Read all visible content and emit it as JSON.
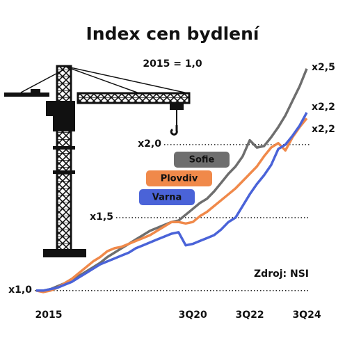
{
  "chart_data": {
    "type": "line",
    "title": "Index cen bydlení",
    "subtitle": "2015 = 1,0",
    "source": "Zdroj: NSI",
    "categories": [
      "2015",
      null,
      null,
      null,
      null,
      null,
      null,
      null,
      null,
      null,
      null,
      null,
      null,
      null,
      null,
      null,
      null,
      null,
      null,
      null,
      null,
      null,
      "3Q20",
      null,
      null,
      null,
      null,
      null,
      null,
      null,
      "3Q22",
      null,
      null,
      null,
      null,
      null,
      null,
      null,
      "3Q24"
    ],
    "series": [
      {
        "name": "Sofie",
        "color": "#6e6e6e",
        "values": [
          1.0,
          1.0,
          1.01,
          1.03,
          1.05,
          1.08,
          1.1,
          1.13,
          1.16,
          1.19,
          1.23,
          1.26,
          1.29,
          1.32,
          1.35,
          1.38,
          1.41,
          1.43,
          1.45,
          1.47,
          1.48,
          1.52,
          1.56,
          1.6,
          1.63,
          1.68,
          1.74,
          1.8,
          1.85,
          1.92,
          2.03,
          1.98,
          1.99,
          2.05,
          2.12,
          2.2,
          2.3,
          2.4,
          2.52
        ],
        "value_labels": [
          null,
          null,
          null,
          null,
          null,
          null,
          null,
          null,
          null,
          null,
          null,
          null,
          null,
          null,
          null,
          null,
          null,
          null,
          null,
          null,
          null,
          null,
          null,
          null,
          null,
          null,
          null,
          null,
          null,
          null,
          null,
          null,
          null,
          null,
          null,
          null,
          null,
          null,
          "x2,5"
        ]
      },
      {
        "name": "Plovdiv",
        "color": "#f0894a",
        "values": [
          1.0,
          0.99,
          1.0,
          1.02,
          1.05,
          1.08,
          1.12,
          1.16,
          1.2,
          1.23,
          1.27,
          1.29,
          1.3,
          1.32,
          1.34,
          1.36,
          1.38,
          1.41,
          1.44,
          1.47,
          1.47,
          1.46,
          1.47,
          1.51,
          1.54,
          1.58,
          1.62,
          1.66,
          1.7,
          1.75,
          1.8,
          1.85,
          1.92,
          1.98,
          2.01,
          1.96,
          2.05,
          2.12,
          2.18
        ],
        "value_labels": [
          null,
          null,
          null,
          null,
          null,
          null,
          null,
          null,
          null,
          null,
          null,
          null,
          null,
          null,
          null,
          null,
          null,
          null,
          null,
          null,
          null,
          null,
          null,
          null,
          null,
          null,
          null,
          null,
          null,
          null,
          null,
          null,
          null,
          null,
          null,
          null,
          null,
          null,
          "x2,2"
        ]
      },
      {
        "name": "Varna",
        "color": "#4a63d8",
        "values": [
          1.0,
          1.0,
          1.01,
          1.02,
          1.04,
          1.06,
          1.09,
          1.12,
          1.15,
          1.18,
          1.2,
          1.22,
          1.24,
          1.26,
          1.29,
          1.31,
          1.33,
          1.35,
          1.37,
          1.39,
          1.4,
          1.31,
          1.32,
          1.34,
          1.36,
          1.38,
          1.42,
          1.47,
          1.5,
          1.58,
          1.66,
          1.73,
          1.79,
          1.86,
          1.97,
          2.0,
          2.06,
          2.13,
          2.22
        ],
        "value_labels": [
          null,
          null,
          null,
          null,
          null,
          null,
          null,
          null,
          null,
          null,
          null,
          null,
          null,
          null,
          null,
          null,
          null,
          null,
          null,
          null,
          null,
          null,
          null,
          null,
          null,
          null,
          null,
          null,
          null,
          null,
          null,
          null,
          null,
          null,
          null,
          null,
          null,
          null,
          "x2,2"
        ]
      }
    ],
    "ylim": [
      0.98,
      2.6
    ],
    "yticks": [
      {
        "value": 1.0,
        "label": "x1,0"
      },
      {
        "value": 1.5,
        "label": "x1,5"
      },
      {
        "value": 2.0,
        "label": "x2,0"
      }
    ],
    "grid": true
  }
}
